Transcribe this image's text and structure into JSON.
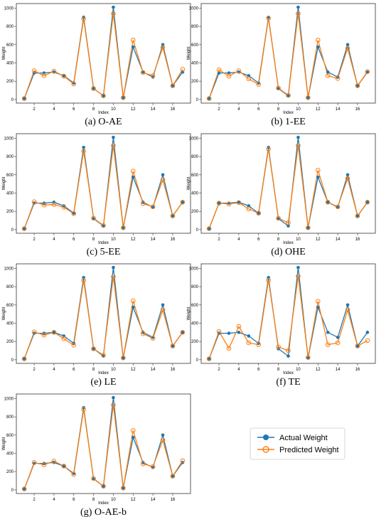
{
  "colors": {
    "actual": "#1f77b4",
    "predicted": "#ff7f0e"
  },
  "legend": {
    "actual_label": "Actual Weight",
    "predicted_label": "Predicted Weight"
  },
  "chart_data": [
    {
      "type": "line",
      "caption": "(a) O-AE",
      "xlabel": "Index",
      "ylabel": "Weight",
      "x": [
        1,
        2,
        3,
        4,
        5,
        6,
        7,
        8,
        9,
        10,
        11,
        12,
        13,
        14,
        15,
        16,
        17
      ],
      "xticks": [
        2,
        4,
        6,
        8,
        10,
        12,
        14,
        16
      ],
      "yticks": [
        0,
        200,
        400,
        600,
        800,
        1000
      ],
      "ylim": [
        -40,
        1050
      ],
      "series": [
        {
          "name": "Actual Weight",
          "values": [
            10,
            290,
            290,
            300,
            260,
            180,
            900,
            120,
            40,
            1010,
            20,
            575,
            300,
            245,
            600,
            150,
            300
          ]
        },
        {
          "name": "Predicted Weight",
          "values": [
            10,
            315,
            260,
            310,
            255,
            170,
            880,
            120,
            40,
            940,
            20,
            650,
            295,
            260,
            570,
            150,
            330
          ]
        }
      ]
    },
    {
      "type": "line",
      "caption": "(b) 1-EE",
      "xlabel": "Index",
      "ylabel": "Weight",
      "x": [
        1,
        2,
        3,
        4,
        5,
        6,
        7,
        8,
        9,
        10,
        11,
        12,
        13,
        14,
        15,
        16,
        17
      ],
      "xticks": [
        2,
        4,
        6,
        8,
        10,
        12,
        14,
        16
      ],
      "yticks": [
        0,
        200,
        400,
        600,
        800,
        1000
      ],
      "ylim": [
        -40,
        1050
      ],
      "series": [
        {
          "name": "Actual Weight",
          "values": [
            10,
            290,
            290,
            300,
            260,
            180,
            900,
            120,
            40,
            1010,
            20,
            575,
            300,
            245,
            600,
            150,
            300
          ]
        },
        {
          "name": "Predicted Weight",
          "values": [
            10,
            325,
            255,
            315,
            225,
            165,
            890,
            125,
            45,
            940,
            20,
            650,
            260,
            230,
            560,
            150,
            305
          ]
        }
      ]
    },
    {
      "type": "line",
      "caption": "(c) 5-EE",
      "xlabel": "Index",
      "ylabel": "Weight",
      "x": [
        1,
        2,
        3,
        4,
        5,
        6,
        7,
        8,
        9,
        10,
        11,
        12,
        13,
        14,
        15,
        16,
        17
      ],
      "xticks": [
        2,
        4,
        6,
        8,
        10,
        12,
        14,
        16
      ],
      "yticks": [
        0,
        200,
        400,
        600,
        800,
        1000
      ],
      "ylim": [
        -40,
        1050
      ],
      "series": [
        {
          "name": "Actual Weight",
          "values": [
            10,
            290,
            290,
            300,
            260,
            180,
            900,
            120,
            40,
            1010,
            20,
            575,
            300,
            245,
            600,
            150,
            300
          ]
        },
        {
          "name": "Predicted Weight",
          "values": [
            10,
            305,
            270,
            275,
            245,
            175,
            860,
            125,
            45,
            920,
            20,
            640,
            285,
            250,
            545,
            150,
            300
          ]
        }
      ]
    },
    {
      "type": "line",
      "caption": "(d) OHE",
      "xlabel": "Index",
      "ylabel": "Weight",
      "x": [
        1,
        2,
        3,
        4,
        5,
        6,
        7,
        8,
        9,
        10,
        11,
        12,
        13,
        14,
        15,
        16,
        17
      ],
      "xticks": [
        2,
        4,
        6,
        8,
        10,
        12,
        14,
        16
      ],
      "yticks": [
        0,
        200,
        400,
        600,
        800,
        1000
      ],
      "ylim": [
        -40,
        1050
      ],
      "series": [
        {
          "name": "Actual Weight",
          "values": [
            10,
            290,
            290,
            300,
            260,
            180,
            900,
            120,
            40,
            1010,
            20,
            575,
            300,
            245,
            600,
            150,
            300
          ]
        },
        {
          "name": "Predicted Weight",
          "values": [
            10,
            290,
            280,
            295,
            225,
            180,
            880,
            125,
            75,
            920,
            20,
            650,
            300,
            250,
            560,
            150,
            300
          ]
        }
      ]
    },
    {
      "type": "line",
      "caption": "(e) LE",
      "xlabel": "Index",
      "ylabel": "Weight",
      "x": [
        1,
        2,
        3,
        4,
        5,
        6,
        7,
        8,
        9,
        10,
        11,
        12,
        13,
        14,
        15,
        16,
        17
      ],
      "xticks": [
        2,
        4,
        6,
        8,
        10,
        12,
        14,
        16
      ],
      "yticks": [
        0,
        200,
        400,
        600,
        800,
        1000
      ],
      "ylim": [
        -40,
        1050
      ],
      "series": [
        {
          "name": "Actual Weight",
          "values": [
            10,
            290,
            290,
            300,
            260,
            180,
            900,
            120,
            40,
            1010,
            20,
            575,
            300,
            245,
            600,
            150,
            300
          ]
        },
        {
          "name": "Predicted Weight",
          "values": [
            10,
            305,
            270,
            300,
            230,
            160,
            870,
            120,
            50,
            910,
            20,
            645,
            285,
            235,
            545,
            150,
            300
          ]
        }
      ]
    },
    {
      "type": "line",
      "caption": "(f) TE",
      "xlabel": "Index",
      "ylabel": "Weight",
      "x": [
        1,
        2,
        3,
        4,
        5,
        6,
        7,
        8,
        9,
        10,
        11,
        12,
        13,
        14,
        15,
        16,
        17
      ],
      "xticks": [
        2,
        4,
        6,
        8,
        10,
        12,
        14,
        16
      ],
      "yticks": [
        0,
        200,
        400,
        600,
        800,
        1000
      ],
      "ylim": [
        -40,
        1050
      ],
      "series": [
        {
          "name": "Actual Weight",
          "values": [
            10,
            290,
            290,
            300,
            260,
            180,
            900,
            120,
            40,
            1010,
            20,
            575,
            300,
            245,
            600,
            150,
            300
          ]
        },
        {
          "name": "Predicted Weight",
          "values": [
            10,
            310,
            125,
            365,
            185,
            165,
            870,
            140,
            100,
            915,
            25,
            640,
            165,
            185,
            545,
            150,
            210
          ]
        }
      ]
    },
    {
      "type": "line",
      "caption": "(g) O-AE-b",
      "xlabel": "Index",
      "ylabel": "Weight",
      "x": [
        1,
        2,
        3,
        4,
        5,
        6,
        7,
        8,
        9,
        10,
        11,
        12,
        13,
        14,
        15,
        16,
        17
      ],
      "xticks": [
        2,
        4,
        6,
        8,
        10,
        12,
        14,
        16
      ],
      "yticks": [
        0,
        200,
        400,
        600,
        800,
        1000
      ],
      "ylim": [
        -40,
        1050
      ],
      "series": [
        {
          "name": "Actual Weight",
          "values": [
            10,
            290,
            290,
            300,
            260,
            180,
            900,
            120,
            40,
            1010,
            20,
            575,
            300,
            245,
            600,
            150,
            300
          ]
        },
        {
          "name": "Predicted Weight",
          "values": [
            10,
            300,
            275,
            315,
            260,
            170,
            880,
            125,
            40,
            930,
            20,
            650,
            285,
            255,
            545,
            150,
            320
          ]
        }
      ]
    }
  ]
}
